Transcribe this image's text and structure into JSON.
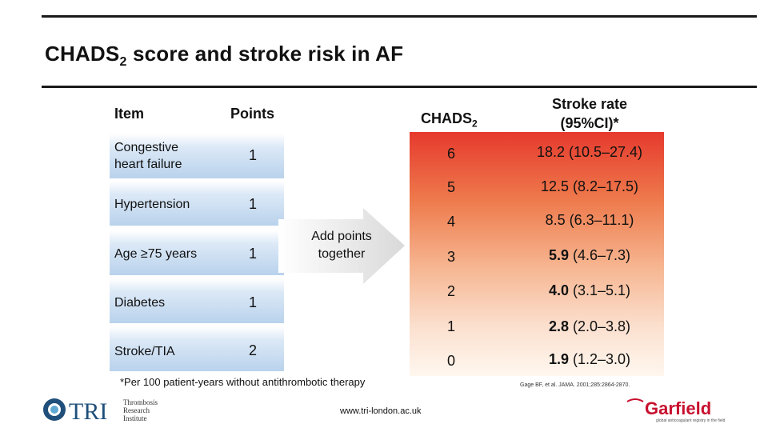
{
  "title": {
    "main": "CHADS",
    "sub": "2",
    "rest": " score and stroke risk in AF"
  },
  "headers": {
    "item": "Item",
    "points": "Points",
    "chads_main": "CHADS",
    "chads_sub": "2",
    "stroke_line1": "Stroke rate",
    "stroke_line2": "(95%CI)*"
  },
  "items": [
    {
      "line1": "Congestive",
      "line2": "heart failure",
      "points": "1"
    },
    {
      "line1": "Hypertension",
      "line2": "",
      "points": "1"
    },
    {
      "line1": "Age ≥75 years",
      "line2": "",
      "points": "1"
    },
    {
      "line1": "Diabetes",
      "line2": "",
      "points": "1"
    },
    {
      "line1": "Stroke/TIA",
      "line2": "",
      "points": "2"
    }
  ],
  "arrow": {
    "line1": "Add points",
    "line2": "together"
  },
  "risk_rows": [
    {
      "score": "6",
      "rate_bold": "",
      "rate": "18.2 (10.5–27.4)"
    },
    {
      "score": "5",
      "rate_bold": "",
      "rate": "12.5 (8.2–17.5)"
    },
    {
      "score": "4",
      "rate_bold": "",
      "rate": "8.5 (6.3–11.1)"
    },
    {
      "score": "3",
      "rate_bold": "5.9",
      "rate": " (4.6–7.3)"
    },
    {
      "score": "2",
      "rate_bold": "4.0",
      "rate": " (3.1–5.1)"
    },
    {
      "score": "1",
      "rate_bold": "2.8",
      "rate": " (2.0–3.8)"
    },
    {
      "score": "0",
      "rate_bold": "1.9",
      "rate": " (1.2–3.0)"
    }
  ],
  "footnote": "*Per 100 patient-years without antithrombotic therapy",
  "citation": "Gage BF, et al. JAMA. 2001;285:2864-2870.",
  "url": "www.tri-london.ac.uk",
  "logos": {
    "tri_main": "TRI",
    "tri_sub1": "Thrombosis",
    "tri_sub2": "Research",
    "tri_sub3": "Institute",
    "garfield": "Garfield",
    "garfield_tag": "global anticoagulant registry in the field"
  },
  "colors": {
    "rule": "#1a1a1a",
    "gradient_top": "#e63a2e",
    "gradient_bottom": "#fff7ef",
    "item_band": "#b9d2ec",
    "tri_blue": "#1f4f7a",
    "garfield_red": "#c8102e"
  }
}
